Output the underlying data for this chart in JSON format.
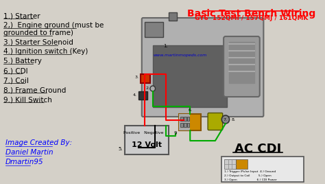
{
  "bg_color": "#d4d0c8",
  "title": "Basic Test Bench Wiring",
  "subtitle": "GY6  152QMI / 157QMJ / 161QMK",
  "website": "www.martinmopeds.com",
  "credit_lines": [
    "Image Created By:",
    "Daniel Martin",
    "Dmartin95"
  ],
  "ac_cdi_text": "AC CDI",
  "wire_red": "#ff0000",
  "wire_green": "#00aa00",
  "wire_black": "#000000",
  "engine_gray": "#b0b0b0",
  "engine_dark": "#606060",
  "cyl_gray": "#999999",
  "solenoid_red": "#cc3300",
  "ign_dark": "#333333",
  "battery_gray": "#cccccc",
  "cdi_orange": "#cc8800",
  "coil_olive": "#aaaa00",
  "legend_box_color": "#e8e8e8"
}
